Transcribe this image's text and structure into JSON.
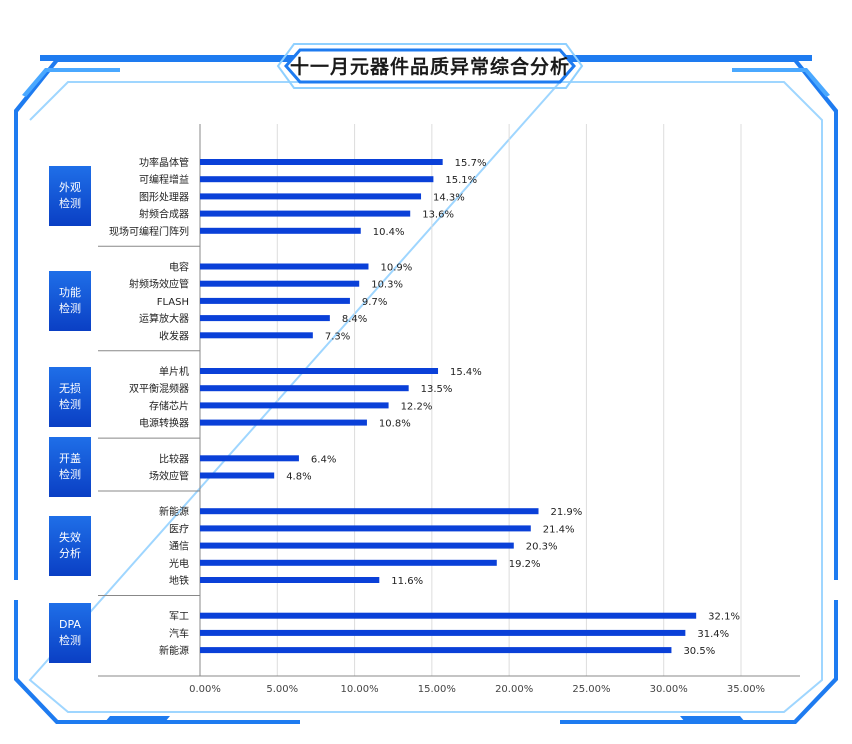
{
  "title": "十一月元器件品质异常综合分析",
  "colors": {
    "bar": "#0a40d8",
    "frame": "#1e7bf0",
    "frame_light": "#8fd0ff",
    "group_box": "#0a46d4"
  },
  "chart_data": {
    "type": "bar",
    "orientation": "horizontal",
    "title": "十一月元器件品质异常综合分析",
    "xlabel": "",
    "ylabel": "",
    "xlim": [
      0,
      35
    ],
    "x_ticks": [
      "0.00%",
      "5.00%",
      "10.00%",
      "15.00%",
      "20.00%",
      "25.00%",
      "30.00%",
      "35.00%"
    ],
    "grid": true,
    "groups": [
      {
        "label_line1": "外观",
        "label_line2": "检测",
        "items": [
          {
            "name": "功率晶体管",
            "value": 15.7,
            "label": "15.7%"
          },
          {
            "name": "可编程增益",
            "value": 15.1,
            "label": "15.1%"
          },
          {
            "name": "图形处理器",
            "value": 14.3,
            "label": "14.3%"
          },
          {
            "name": "射频合成器",
            "value": 13.6,
            "label": "13.6%"
          },
          {
            "name": "现场可编程门阵列",
            "value": 10.4,
            "label": "10.4%"
          }
        ]
      },
      {
        "label_line1": "功能",
        "label_line2": "检测",
        "items": [
          {
            "name": "电容",
            "value": 10.9,
            "label": "10.9%"
          },
          {
            "name": "射频场效应管",
            "value": 10.3,
            "label": "10.3%"
          },
          {
            "name": "FLASH",
            "value": 9.7,
            "label": "9.7%"
          },
          {
            "name": "运算放大器",
            "value": 8.4,
            "label": "8.4%"
          },
          {
            "name": "收发器",
            "value": 7.3,
            "label": "7.3%"
          }
        ]
      },
      {
        "label_line1": "无损",
        "label_line2": "检测",
        "items": [
          {
            "name": "单片机",
            "value": 15.4,
            "label": "15.4%"
          },
          {
            "name": "双平衡混频器",
            "value": 13.5,
            "label": "13.5%"
          },
          {
            "name": "存储芯片",
            "value": 12.2,
            "label": "12.2%"
          },
          {
            "name": "电源转换器",
            "value": 10.8,
            "label": "10.8%"
          }
        ]
      },
      {
        "label_line1": "开盖",
        "label_line2": "检测",
        "items": [
          {
            "name": "比较器",
            "value": 6.4,
            "label": "6.4%"
          },
          {
            "name": "场效应管",
            "value": 4.8,
            "label": "4.8%"
          }
        ]
      },
      {
        "label_line1": "失效",
        "label_line2": "分析",
        "items": [
          {
            "name": "新能源",
            "value": 21.9,
            "label": "21.9%"
          },
          {
            "name": "医疗",
            "value": 21.4,
            "label": "21.4%"
          },
          {
            "name": "通信",
            "value": 20.3,
            "label": "20.3%"
          },
          {
            "name": "光电",
            "value": 19.2,
            "label": "19.2%"
          },
          {
            "name": "地铁",
            "value": 11.6,
            "label": "11.6%"
          }
        ]
      },
      {
        "label_line1": "DPA",
        "label_line2": "检测",
        "items": [
          {
            "name": "军工",
            "value": 32.1,
            "label": "32.1%"
          },
          {
            "name": "汽车",
            "value": 31.4,
            "label": "31.4%"
          },
          {
            "name": "新能源",
            "value": 30.5,
            "label": "30.5%"
          }
        ]
      }
    ]
  }
}
